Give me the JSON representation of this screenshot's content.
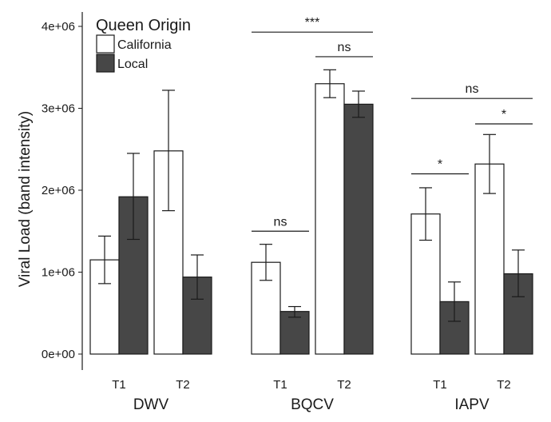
{
  "chart_data": {
    "type": "bar",
    "ylabel": "Viral Load (band intensity)",
    "ylim": [
      0,
      4000000
    ],
    "y_ticks": [
      {
        "value": 0,
        "label": "0e+00"
      },
      {
        "value": 1000000,
        "label": "1e+06"
      },
      {
        "value": 2000000,
        "label": "2e+06"
      },
      {
        "value": 3000000,
        "label": "3e+06"
      },
      {
        "value": 4000000,
        "label": "4e+06"
      }
    ],
    "grid": false,
    "legend": {
      "title": "Queen Origin",
      "placement": "top-left",
      "entries": [
        {
          "name": "California",
          "color": "#ffffff"
        },
        {
          "name": "Local",
          "color": "#474747"
        }
      ]
    },
    "series_names": [
      "California",
      "Local"
    ],
    "series_colors": [
      "#ffffff",
      "#474747"
    ],
    "groups": [
      {
        "name": "DWV",
        "timepoints": [
          {
            "label": "T1",
            "values": [
              1150000,
              1920000
            ],
            "errors": [
              [
                860000,
                1440000
              ],
              [
                1400000,
                2450000
              ]
            ]
          },
          {
            "label": "T2",
            "values": [
              2480000,
              940000
            ],
            "errors": [
              [
                1750000,
                3220000
              ],
              [
                670000,
                1210000
              ]
            ]
          }
        ],
        "annotations": []
      },
      {
        "name": "BQCV",
        "timepoints": [
          {
            "label": "T1",
            "values": [
              1120000,
              520000
            ],
            "errors": [
              [
                900000,
                1340000
              ],
              [
                450000,
                580000
              ]
            ]
          },
          {
            "label": "T2",
            "values": [
              3300000,
              3050000
            ],
            "errors": [
              [
                3130000,
                3470000
              ],
              [
                2890000,
                3210000
              ]
            ]
          }
        ],
        "annotations": [
          {
            "text": "ns",
            "from": [
              0,
              0
            ],
            "to": [
              0,
              1
            ],
            "y": 1500000
          },
          {
            "text": "ns",
            "from": [
              1,
              0
            ],
            "to": [
              1,
              1
            ],
            "y": 3630000
          },
          {
            "text": "***",
            "from": [
              0,
              0
            ],
            "to": [
              1,
              1
            ],
            "y": 3930000
          }
        ]
      },
      {
        "name": "IAPV",
        "timepoints": [
          {
            "label": "T1",
            "values": [
              1710000,
              640000
            ],
            "errors": [
              [
                1390000,
                2030000
              ],
              [
                400000,
                880000
              ]
            ]
          },
          {
            "label": "T2",
            "values": [
              2320000,
              980000
            ],
            "errors": [
              [
                1960000,
                2680000
              ],
              [
                700000,
                1270000
              ]
            ]
          }
        ],
        "annotations": [
          {
            "text": "*",
            "from": [
              0,
              0
            ],
            "to": [
              0,
              1
            ],
            "y": 2200000
          },
          {
            "text": "*",
            "from": [
              1,
              0
            ],
            "to": [
              1,
              1
            ],
            "y": 2810000
          },
          {
            "text": "ns",
            "from": [
              0,
              0
            ],
            "to": [
              1,
              1
            ],
            "y": 3120000
          }
        ]
      }
    ]
  }
}
